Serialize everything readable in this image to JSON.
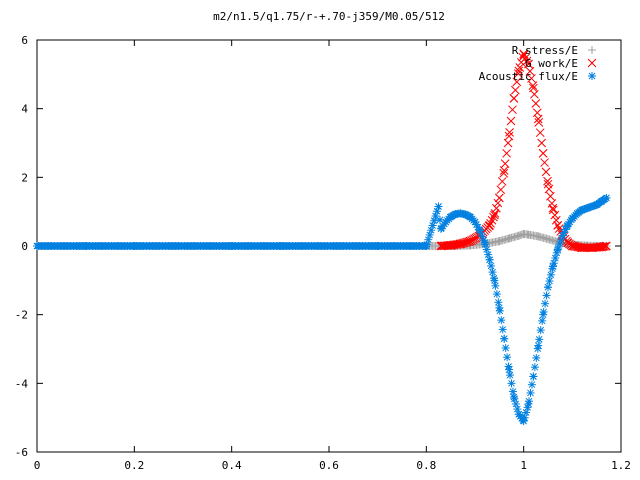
{
  "chart_data": {
    "type": "scatter",
    "title": "m2/n1.5/q1.75/r-+.70-j359/M0.05/512",
    "xlabel": "",
    "ylabel": "",
    "xlim": [
      0,
      1.2
    ],
    "ylim": [
      -6,
      6
    ],
    "xticks": [
      "0",
      "0.2",
      "0.4",
      "0.6",
      "0.8",
      "1",
      "1.2"
    ],
    "yticks": [
      "-6",
      "-4",
      "-2",
      "0",
      "2",
      "4",
      "6"
    ],
    "grid": false,
    "legend_position": "top-right",
    "series": [
      {
        "name": "R stress/E",
        "marker": "plus",
        "color": "#a0a0a0",
        "x": [
          0.0,
          0.1,
          0.2,
          0.3,
          0.4,
          0.5,
          0.6,
          0.7,
          0.8,
          0.83,
          0.86,
          0.89,
          0.92,
          0.95,
          0.97,
          0.99,
          1.0,
          1.01,
          1.03,
          1.05,
          1.07,
          1.09,
          1.11,
          1.13,
          1.15,
          1.17
        ],
        "y": [
          0,
          0,
          0,
          0,
          0,
          0,
          0,
          0,
          0,
          0.0,
          0.0,
          0.02,
          0.06,
          0.14,
          0.22,
          0.3,
          0.35,
          0.33,
          0.28,
          0.2,
          0.12,
          0.06,
          0.03,
          0.01,
          0.0,
          0.0
        ]
      },
      {
        "name": "G work/E",
        "marker": "cross",
        "color": "#ff0000",
        "x": [
          0.83,
          0.85,
          0.87,
          0.89,
          0.91,
          0.93,
          0.94,
          0.95,
          0.96,
          0.97,
          0.98,
          0.99,
          1.0,
          1.01,
          1.02,
          1.03,
          1.04,
          1.05,
          1.06,
          1.07,
          1.08,
          1.09,
          1.1,
          1.12,
          1.14,
          1.16,
          1.17
        ],
        "y": [
          0.0,
          0.02,
          0.06,
          0.14,
          0.3,
          0.6,
          0.9,
          1.4,
          2.2,
          3.2,
          4.3,
          5.1,
          5.6,
          5.3,
          4.6,
          3.7,
          2.7,
          1.8,
          1.1,
          0.6,
          0.3,
          0.1,
          0.0,
          -0.05,
          -0.05,
          -0.03,
          0.0
        ]
      },
      {
        "name": "Acoustic flux/E",
        "marker": "star",
        "color": "#0080e0",
        "x": [
          0.0,
          0.1,
          0.2,
          0.3,
          0.4,
          0.5,
          0.6,
          0.7,
          0.8,
          0.825,
          0.83,
          0.84,
          0.85,
          0.86,
          0.87,
          0.88,
          0.89,
          0.9,
          0.91,
          0.92,
          0.93,
          0.94,
          0.95,
          0.96,
          0.97,
          0.98,
          0.99,
          1.0,
          1.01,
          1.02,
          1.03,
          1.04,
          1.05,
          1.06,
          1.07,
          1.08,
          1.09,
          1.1,
          1.11,
          1.12,
          1.13,
          1.14,
          1.15,
          1.16,
          1.17
        ],
        "y": [
          0,
          0,
          0,
          0,
          0,
          0,
          0,
          0,
          0,
          1.15,
          0.5,
          0.7,
          0.85,
          0.93,
          0.95,
          0.92,
          0.85,
          0.7,
          0.45,
          0.1,
          -0.4,
          -1.0,
          -1.8,
          -2.7,
          -3.6,
          -4.4,
          -4.9,
          -5.1,
          -4.6,
          -3.8,
          -2.9,
          -2.0,
          -1.2,
          -0.6,
          -0.1,
          0.3,
          0.6,
          0.8,
          0.95,
          1.05,
          1.1,
          1.15,
          1.2,
          1.3,
          1.4
        ]
      }
    ]
  }
}
